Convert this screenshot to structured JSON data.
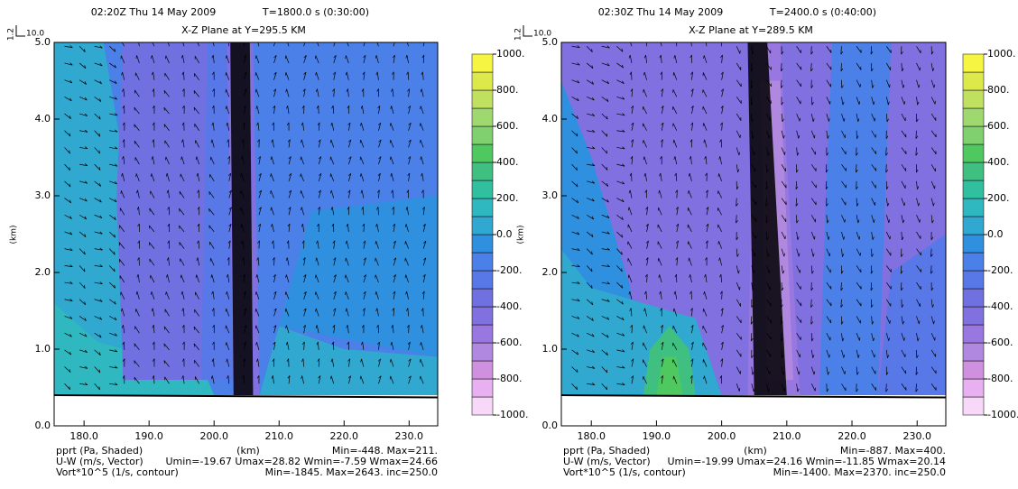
{
  "chart_data": [
    {
      "type": "contour",
      "time": "02:20Z Thu 14 May 2009",
      "elapsed": "T=1800.0 s (0:30:00)",
      "plane": "X-Z Plane at Y=295.5 KM",
      "vector_ref_scale": "1.2",
      "vector_ref_length": "10.0",
      "xlabel": "(km)",
      "ylabel": "(km)",
      "xlim": [
        175.4,
        234.4
      ],
      "ylim": [
        0,
        5
      ],
      "xticks": [
        {
          "value": 180,
          "label": "180.0"
        },
        {
          "value": 190,
          "label": "190.0"
        },
        {
          "value": 200,
          "label": "200.0"
        },
        {
          "value": 210,
          "label": "210.0"
        },
        {
          "value": 220,
          "label": "220.0"
        },
        {
          "value": 230,
          "label": "230.0"
        }
      ],
      "yticks": [
        {
          "value": 0,
          "label": "0.0"
        },
        {
          "value": 1,
          "label": "1.0"
        },
        {
          "value": 2,
          "label": "2.0"
        },
        {
          "value": 3,
          "label": "3.0"
        },
        {
          "value": 4,
          "label": "4.0"
        },
        {
          "value": 5,
          "label": "5.0"
        }
      ],
      "colorbar": {
        "lim": [
          -1000,
          1000
        ],
        "ticks": [
          {
            "value": 1000,
            "label": "1000."
          },
          {
            "value": 800,
            "label": "800."
          },
          {
            "value": 600,
            "label": "600."
          },
          {
            "value": 400,
            "label": "400."
          },
          {
            "value": 200,
            "label": "200."
          },
          {
            "value": 0,
            "label": "0.0"
          },
          {
            "value": -200,
            "label": "-200."
          },
          {
            "value": -400,
            "label": "-400."
          },
          {
            "value": -600,
            "label": "-600."
          },
          {
            "value": -800,
            "label": "-800."
          },
          {
            "value": -1000,
            "label": "-1000."
          }
        ],
        "colors": [
          "#f8d8f8",
          "#e8b0f0",
          "#d090e0",
          "#b088e0",
          "#9878e0",
          "#8070e0",
          "#7070e0",
          "#5878e8",
          "#4a80e8",
          "#3090e0",
          "#30a8d0",
          "#30b8c0",
          "#30c0a0",
          "#40c080",
          "#50c860",
          "#80d070",
          "#a0d870",
          "#c0e060",
          "#dde84a",
          "#f5f542"
        ]
      },
      "shaded_label": "pprt (Pa, Shaded)",
      "shaded_stats": "Min=-448. Max=211.",
      "vector_label": "U-W (m/s, Vector)",
      "vector_stats": "Umin=-19.67 Umax=28.82 Wmin=-7.59 Wmax=24.66",
      "contour_label": "Vort*10^5 (1/s, contour)",
      "contour_stats": "Min=-1845. Max=2643. inc=250.0"
    },
    {
      "type": "contour",
      "time": "02:30Z Thu 14 May 2009",
      "elapsed": "T=2400.0 s (0:40:00)",
      "plane": "X-Z Plane at Y=289.5 KM",
      "vector_ref_scale": "1.2",
      "vector_ref_length": "10.0",
      "xlabel": "(km)",
      "ylabel": "(km)",
      "xlim": [
        175.4,
        234.4
      ],
      "ylim": [
        0,
        5
      ],
      "xticks": [
        {
          "value": 180,
          "label": "180.0"
        },
        {
          "value": 190,
          "label": "190.0"
        },
        {
          "value": 200,
          "label": "200.0"
        },
        {
          "value": 210,
          "label": "210.0"
        },
        {
          "value": 220,
          "label": "220.0"
        },
        {
          "value": 230,
          "label": "230.0"
        }
      ],
      "yticks": [
        {
          "value": 0,
          "label": "0.0"
        },
        {
          "value": 1,
          "label": "1.0"
        },
        {
          "value": 2,
          "label": "2.0"
        },
        {
          "value": 3,
          "label": "3.0"
        },
        {
          "value": 4,
          "label": "4.0"
        },
        {
          "value": 5,
          "label": "5.0"
        }
      ],
      "colorbar": {
        "lim": [
          -1000,
          1000
        ],
        "ticks": [
          {
            "value": 1000,
            "label": "1000."
          },
          {
            "value": 800,
            "label": "800."
          },
          {
            "value": 600,
            "label": "600."
          },
          {
            "value": 400,
            "label": "400."
          },
          {
            "value": 200,
            "label": "200."
          },
          {
            "value": 0,
            "label": "0.0"
          },
          {
            "value": -200,
            "label": "-200."
          },
          {
            "value": -400,
            "label": "-400."
          },
          {
            "value": -600,
            "label": "-600."
          },
          {
            "value": -800,
            "label": "-800."
          },
          {
            "value": -1000,
            "label": "-1000."
          }
        ],
        "colors": [
          "#f8d8f8",
          "#e8b0f0",
          "#d090e0",
          "#b088e0",
          "#9878e0",
          "#8070e0",
          "#7070e0",
          "#5878e8",
          "#4a80e8",
          "#3090e0",
          "#30a8d0",
          "#30b8c0",
          "#30c0a0",
          "#40c080",
          "#50c860",
          "#80d070",
          "#a0d870",
          "#c0e060",
          "#dde84a",
          "#f5f542"
        ]
      },
      "shaded_label": "pprt (Pa, Shaded)",
      "shaded_stats": "Min=-887. Max=400.",
      "vector_label": "U-W (m/s, Vector)",
      "vector_stats": "Umin=-19.99 Umax=24.16 Wmin=-11.85 Wmax=20.14",
      "contour_label": "Vort*10^5 (1/s, contour)",
      "contour_stats": "Min=-1400. Max=2370. inc=250.0"
    }
  ]
}
